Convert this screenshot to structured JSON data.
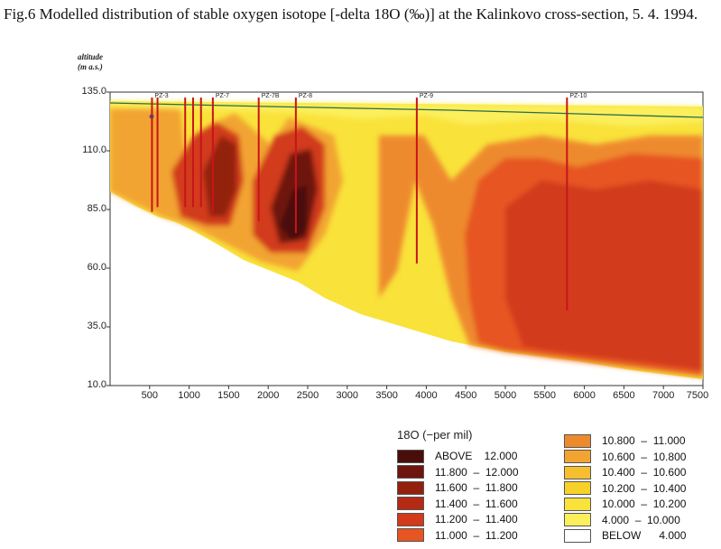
{
  "title": "Fig.6 Modelled distribution of stable oxygen isotope [-delta 18O (‰)] at the Kalinkovo cross-section, 5. 4. 1994.",
  "y_axis": {
    "label_line1": "altitude",
    "label_line2": "(m a.s.)",
    "ticks": [
      "135.0",
      "110.0",
      "85.0",
      "60.0",
      "35.0",
      "10.0"
    ],
    "range": [
      10,
      135
    ]
  },
  "x_axis": {
    "ticks": [
      "500",
      "1000",
      "1500",
      "2000",
      "2500",
      "3000",
      "3500",
      "4000",
      "4500",
      "5000",
      "5500",
      "6000",
      "6500",
      "7000",
      "7500"
    ],
    "range": [
      0,
      7500
    ]
  },
  "wells": [
    {
      "label": "PZ-3",
      "x": 530,
      "bottom": 84
    },
    {
      "label": "PZ-7",
      "x": 1300,
      "bottom": 83
    },
    {
      "label": "PZ-7B",
      "x": 1880,
      "bottom": 80
    },
    {
      "label": "PZ-8",
      "x": 2350,
      "bottom": 75
    },
    {
      "label": "PZ-9",
      "x": 3880,
      "bottom": 62
    },
    {
      "label": "PZ-10",
      "x": 5780,
      "bottom": 42
    }
  ],
  "legend": {
    "title": "18O (−per mil)",
    "items": [
      {
        "text": "ABOVE    12.000",
        "color": "#4a0e0a"
      },
      {
        "text": "11.800  –  12.000",
        "color": "#6e150f"
      },
      {
        "text": "11.600  –  11.800",
        "color": "#93200f"
      },
      {
        "text": "11.400  –  11.600",
        "color": "#b52a14"
      },
      {
        "text": "11.200  –  11.400",
        "color": "#d23a1a"
      },
      {
        "text": "11.000  –  11.200",
        "color": "#e65522"
      },
      {
        "text": "10.800  –  11.000",
        "color": "#ee8a2e"
      },
      {
        "text": "10.600  –  10.800",
        "color": "#f2a431"
      },
      {
        "text": "10.400  –  10.600",
        "color": "#f5bf2f"
      },
      {
        "text": "10.200  –  10.400",
        "color": "#f7d12a"
      },
      {
        "text": "10.000  –  10.200",
        "color": "#f9e23a"
      },
      {
        "text": "4.000  –  10.000",
        "color": "#fbef5c"
      },
      {
        "text": "BELOW      4.000",
        "color": "#ffffff"
      }
    ]
  }
}
